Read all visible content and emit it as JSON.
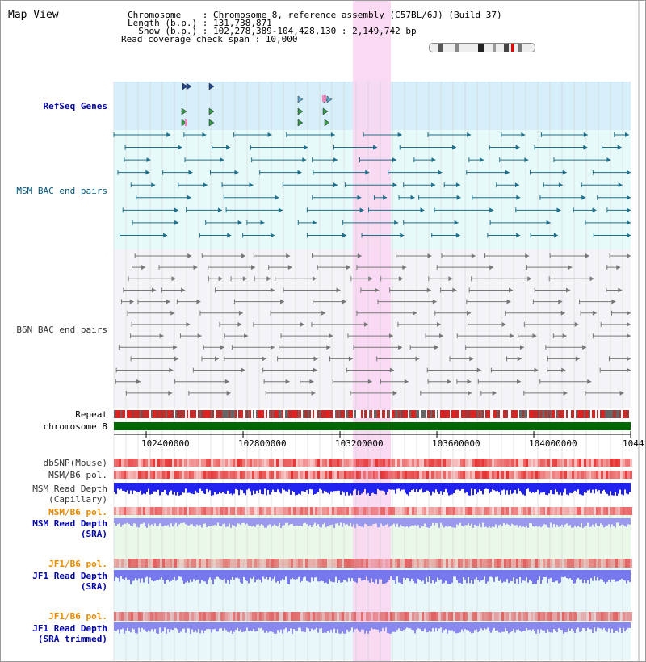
{
  "title": "Map View",
  "header": {
    "line1": "Chromosome    : Chromosome 8, reference assembly (C57BL/6J) (Build 37)",
    "line2": "Length (b.p.) : 131,738,871",
    "line3": "  Show (b.p.) : 102,278,389-104,428,130 : 2,149,742 bp",
    "line4": "Read coverage check span : 10,000"
  },
  "tracks": {
    "refseq": "RefSeq Genes",
    "msm_bac": "MSM BAC end pairs",
    "b6n_bac": "B6N BAC end pairs",
    "repeat": "Repeat",
    "chromosome": "chromosome 8",
    "dbsnp": "dbSNP(Mouse)",
    "msm_b6_pol": "MSM/B6 pol.",
    "msm_depth_cap_1": "MSM Read Depth",
    "msm_depth_cap_2": "(Capillary)",
    "msm_b6_pol2": "MSM/B6 pol.",
    "msm_depth_sra_1": "MSM Read Depth",
    "msm_depth_sra_2": "(SRA)",
    "jf1_b6_pol": "JF1/B6 pol.",
    "jf1_depth_sra_1": "JF1 Read Depth",
    "jf1_depth_sra_2": "(SRA)",
    "jf1_b6_pol2": "JF1/B6 pol.",
    "jf1_depth_trim_1": "JF1 Read Depth",
    "jf1_depth_trim_2": "(SRA trimmed)"
  },
  "axis_ticks": [
    "102400000",
    "102800000",
    "103200000",
    "103600000",
    "104000000",
    "1044"
  ],
  "colors": {
    "highlight": "#f9d6f2",
    "refseq_bg": "#d7eefb",
    "bac_bg": "#e6fafa",
    "b6n_bg": "#f4f4f8",
    "chromosome": "#006600",
    "depth_blue": "#2222ee",
    "depth_light": "#7777ee",
    "pol_red": "#ee4444"
  }
}
